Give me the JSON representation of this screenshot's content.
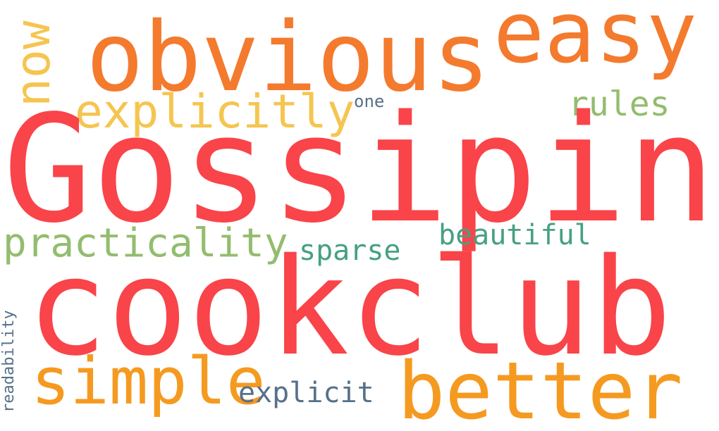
{
  "colors": {
    "red": "#f94449",
    "orange": "#f47a2e",
    "amber": "#f59a20",
    "yellow": "#f5c550",
    "green": "#93bd6e",
    "teal": "#46a083",
    "slate": "#56708a"
  },
  "words": {
    "gossiping": "Gossiping",
    "cookclub": "cookclub",
    "obvious": "obvious",
    "easy": "easy",
    "now": "now",
    "explicitly": "explicitly",
    "rules": "rules",
    "one": "one",
    "practicality": "practicality",
    "beautiful": "beautiful",
    "sparse": "sparse",
    "simple": "simple",
    "better": "better",
    "explicit": "explicit",
    "readability": "readability"
  }
}
